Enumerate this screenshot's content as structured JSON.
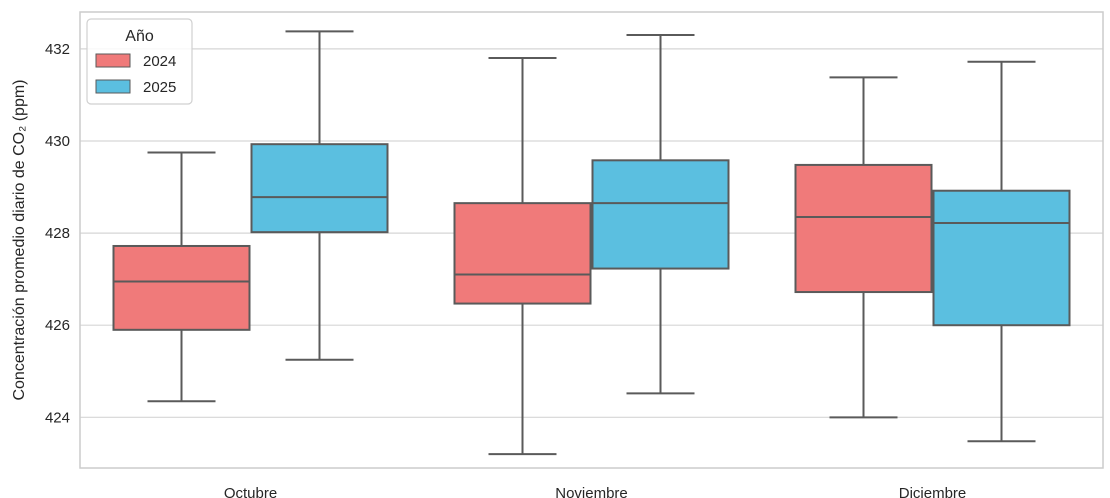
{
  "chart_data": {
    "type": "boxplot",
    "title": "",
    "xlabel": "",
    "ylabel": "Concentración promedio diario de CO₂ (ppm)",
    "ylim": [
      422.9,
      432.8
    ],
    "yticks": [
      424,
      426,
      428,
      430,
      432
    ],
    "categories": [
      "Octubre",
      "Noviembre",
      "Diciembre"
    ],
    "grid": true,
    "legend": {
      "title": "Año",
      "placement": "top-left"
    },
    "series": [
      {
        "name": "2024",
        "color": "#f07a7a",
        "boxes": [
          {
            "category": "Octubre",
            "whisker_low": 424.35,
            "q1": 425.9,
            "median": 426.95,
            "q3": 427.72,
            "whisker_high": 429.75
          },
          {
            "category": "Noviembre",
            "whisker_low": 423.2,
            "q1": 426.47,
            "median": 427.1,
            "q3": 428.65,
            "whisker_high": 431.8
          },
          {
            "category": "Diciembre",
            "whisker_low": 424.0,
            "q1": 426.72,
            "median": 428.35,
            "q3": 429.48,
            "whisker_high": 431.38
          }
        ]
      },
      {
        "name": "2025",
        "color": "#5bbfe0",
        "boxes": [
          {
            "category": "Octubre",
            "whisker_low": 425.25,
            "q1": 428.02,
            "median": 428.78,
            "q3": 429.93,
            "whisker_high": 432.38
          },
          {
            "category": "Noviembre",
            "whisker_low": 424.52,
            "q1": 427.23,
            "median": 428.65,
            "q3": 429.58,
            "whisker_high": 432.3
          },
          {
            "category": "Diciembre",
            "whisker_low": 423.48,
            "q1": 426.0,
            "median": 428.22,
            "q3": 428.92,
            "whisker_high": 431.72
          }
        ]
      }
    ]
  }
}
